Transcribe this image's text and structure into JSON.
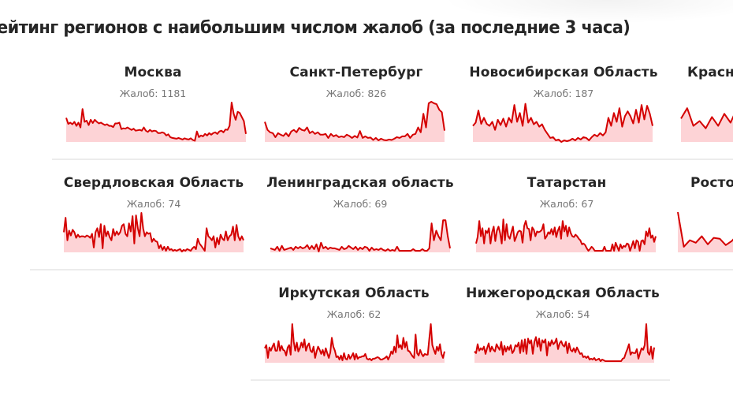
{
  "header": {
    "title": "ейтинг регионов с наибольшим числом жалоб (за последние 3 часа)"
  },
  "colors": {
    "line": "#d40000",
    "fill": "#fdd3d6",
    "title": "#262626",
    "count": "#777777",
    "divider": "#ececec"
  },
  "count_prefix": "Жалоб:",
  "cards": [
    {
      "name": "Москва",
      "count_label": "Жалоб: 1181",
      "count": 1181
    },
    {
      "name": "Санкт-Петербург",
      "count_label": "Жалоб: 826",
      "count": 826
    },
    {
      "name": "Новосибирская Область",
      "count_label": "Жалоб: 187",
      "count": 187
    },
    {
      "name": "Красн",
      "count_label": "",
      "count": null
    },
    {
      "name": "Свердловская Область",
      "count_label": "Жалоб: 74",
      "count": 74
    },
    {
      "name": "Ленинградская область",
      "count_label": "Жалоб: 69",
      "count": 69
    },
    {
      "name": "Татарстан",
      "count_label": "Жалоб: 67",
      "count": 67
    },
    {
      "name": "Росто",
      "count_label": "",
      "count": null
    },
    {
      "name": "Иркутская Область",
      "count_label": "Жалоб: 62",
      "count": 62
    },
    {
      "name": "Нижегородская Область",
      "count_label": "Жалоб: 54",
      "count": 54
    }
  ],
  "chart_data": {
    "type": "area",
    "title": "ейтинг регионов с наибольшим числом жалоб (за последние 3 часа)",
    "xlabel": "",
    "ylabel": "",
    "grid": false,
    "legend": "none",
    "note": "Sparkline values are relative heights (0-100) read from pixels; no axes shown.",
    "series": [
      {
        "name": "Москва",
        "total": 1181,
        "values": [
          60,
          45,
          48,
          44,
          50,
          40,
          48,
          36,
          82,
          50,
          53,
          42,
          55,
          47,
          55,
          50,
          46,
          48,
          45,
          42,
          44,
          40,
          40,
          37,
          46,
          46,
          48,
          32,
          34,
          33,
          36,
          33,
          30,
          33,
          28,
          29,
          30,
          28,
          36,
          28,
          25,
          30,
          26,
          28,
          27,
          22,
          22,
          24,
          22,
          16,
          19,
          12,
          10,
          9,
          8,
          10,
          8,
          6,
          9,
          7,
          6,
          9,
          5,
          3,
          26,
          12,
          16,
          14,
          20,
          16,
          22,
          18,
          22,
          24,
          20,
          26,
          28,
          24,
          31,
          30,
          40,
          98,
          70,
          55,
          75,
          72,
          62,
          52,
          20
        ]
      },
      {
        "name": "Санкт-Петербург",
        "total": 826,
        "values": [
          50,
          30,
          24,
          22,
          12,
          22,
          18,
          15,
          22,
          14,
          26,
          30,
          24,
          35,
          30,
          28,
          36,
          22,
          26,
          20,
          24,
          18,
          18,
          20,
          10,
          20,
          14,
          17,
          12,
          14,
          12,
          18,
          15,
          10,
          15,
          11,
          27,
          10,
          14,
          10,
          11,
          5,
          10,
          4,
          8,
          5,
          4,
          6,
          5,
          8,
          12,
          10,
          14,
          14,
          20,
          10,
          18,
          20,
          36,
          24,
          70,
          36,
          96,
          100,
          96,
          94,
          80,
          74,
          28
        ]
      },
      {
        "name": "Новосибирская Область",
        "total": 187,
        "values": [
          40,
          48,
          78,
          45,
          60,
          45,
          40,
          50,
          30,
          55,
          42,
          58,
          38,
          60,
          48,
          92,
          50,
          72,
          40,
          95,
          48,
          60,
          44,
          50,
          38,
          44,
          30,
          20,
          10,
          12,
          4,
          6,
          0,
          4,
          2,
          4,
          8,
          4,
          10,
          6,
          12,
          10,
          4,
          12,
          18,
          14,
          22,
          16,
          24,
          60,
          40,
          72,
          50,
          84,
          38,
          64,
          76,
          64,
          46,
          80,
          48,
          92,
          56,
          90,
          70,
          40
        ]
      },
      {
        "name": "Красн",
        "total": null,
        "values": [
          58,
          84,
          40,
          52,
          34,
          62,
          40,
          70,
          48,
          82,
          44,
          56,
          30,
          80,
          48,
          22,
          56,
          42,
          52,
          44,
          50,
          44,
          46,
          30,
          36,
          32,
          38,
          36,
          46,
          34
        ]
      },
      {
        "name": "Свердловская Область",
        "total": 74,
        "values": [
          50,
          86,
          30,
          54,
          42,
          56,
          50,
          36,
          44,
          38,
          40,
          40,
          38,
          42,
          40,
          36,
          46,
          12,
          50,
          60,
          38,
          70,
          10,
          66,
          40,
          52,
          38,
          30,
          58,
          42,
          52,
          44,
          50,
          66,
          70,
          46,
          40,
          72,
          52,
          90,
          22,
          92,
          60,
          40,
          98,
          60,
          40,
          50,
          46,
          48,
          26,
          34,
          28,
          26,
          10,
          18,
          6,
          14,
          4,
          14,
          6,
          8,
          4,
          6,
          4,
          6,
          8,
          2,
          6,
          4,
          8,
          6,
          4,
          10,
          14,
          8,
          34,
          22,
          16,
          10,
          4,
          60,
          40,
          36,
          30,
          40,
          12,
          36,
          20,
          44,
          34,
          30,
          52,
          30,
          40,
          44,
          64,
          30,
          68,
          40,
          30,
          40,
          30
        ]
      },
      {
        "name": "Ленинградская область",
        "total": 69,
        "values": [
          10,
          8,
          6,
          14,
          4,
          16,
          6,
          8,
          10,
          12,
          6,
          14,
          10,
          14,
          10,
          12,
          18,
          8,
          16,
          8,
          20,
          2,
          24,
          10,
          14,
          8,
          12,
          10,
          10,
          8,
          6,
          14,
          8,
          10,
          16,
          12,
          8,
          14,
          6,
          12,
          8,
          14,
          12,
          4,
          12,
          6,
          8,
          6,
          10,
          6,
          4,
          8,
          4,
          6,
          4,
          14,
          4,
          4,
          4,
          4,
          4,
          4,
          8,
          4,
          4,
          4,
          8,
          4,
          4,
          10,
          72,
          30,
          54,
          40,
          30,
          80,
          80,
          40,
          10
        ]
      },
      {
        "name": "Татарстан",
        "total": 67,
        "values": [
          22,
          38,
          78,
          40,
          60,
          22,
          54,
          48,
          60,
          22,
          50,
          64,
          28,
          54,
          64,
          48,
          22,
          82,
          30,
          70,
          40,
          34,
          50,
          64,
          28,
          38,
          50,
          54,
          52,
          24,
          66,
          78,
          60,
          58,
          30,
          62,
          56,
          40,
          52,
          50,
          52,
          56,
          70,
          34,
          40,
          50,
          46,
          58,
          44,
          62,
          38,
          54,
          64,
          34,
          78,
          52,
          66,
          40,
          62,
          48,
          40,
          38,
          44,
          40,
          34,
          30,
          20,
          22,
          18,
          10,
          4,
          8,
          14,
          10,
          4,
          4,
          4,
          4,
          4,
          4,
          14,
          4,
          4,
          4,
          4,
          20,
          4,
          24,
          14,
          4,
          20,
          10,
          16,
          14,
          22,
          20,
          4,
          16,
          28,
          10,
          30,
          26,
          4,
          28,
          30,
          20,
          52,
          40,
          60,
          36,
          42,
          26,
          40
        ]
      },
      {
        "name": "Росто",
        "total": null,
        "values": [
          100,
          14,
          30,
          24,
          40,
          20,
          36,
          34,
          18,
          28,
          44,
          30,
          20,
          46,
          32,
          24,
          40,
          50,
          48,
          36,
          20,
          34,
          46,
          28,
          20,
          36,
          30,
          32,
          26,
          34,
          28
        ]
      },
      {
        "name": "Иркутская Область",
        "total": 62,
        "values": [
          36,
          44,
          12,
          38,
          30,
          40,
          48,
          30,
          30,
          54,
          30,
          42,
          32,
          30,
          18,
          38,
          44,
          20,
          96,
          52,
          30,
          50,
          28,
          36,
          50,
          38,
          58,
          30,
          42,
          48,
          30,
          26,
          40,
          12,
          28,
          40,
          32,
          22,
          32,
          18,
          36,
          24,
          12,
          26,
          62,
          40,
          30,
          14,
          16,
          8,
          18,
          6,
          24,
          10,
          8,
          20,
          10,
          16,
          24,
          8,
          22,
          10,
          14,
          14,
          16,
          16,
          22,
          10,
          8,
          10,
          6,
          10,
          10,
          12,
          14,
          12,
          8,
          8,
          10,
          12,
          16,
          8,
          16,
          28,
          22,
          40,
          26,
          68,
          38,
          44,
          34,
          62,
          38,
          52,
          30,
          28,
          22,
          16,
          12,
          70,
          24,
          18,
          32,
          22,
          16,
          22,
          20,
          20,
          60,
          96,
          44,
          32,
          22,
          40,
          30,
          46,
          22,
          12,
          28
        ]
      },
      {
        "name": "Нижегородская Область",
        "total": 54,
        "values": [
          28,
          24,
          46,
          30,
          36,
          32,
          40,
          22,
          36,
          48,
          28,
          40,
          32,
          28,
          46,
          38,
          32,
          52,
          20,
          42,
          28,
          40,
          32,
          44,
          24,
          30,
          44,
          40,
          50,
          24,
          56,
          28,
          58,
          22,
          60,
          48,
          56,
          22,
          52,
          64,
          40,
          60,
          30,
          56,
          50,
          58,
          18,
          52,
          42,
          56,
          46,
          50,
          60,
          34,
          48,
          54,
          44,
          40,
          52,
          24,
          48,
          32,
          28,
          36,
          26,
          38,
          30,
          22,
          24,
          14,
          16,
          12,
          16,
          8,
          10,
          8,
          12,
          6,
          8,
          10,
          4,
          8,
          6,
          4,
          4,
          4,
          4,
          4,
          4,
          4,
          4,
          4,
          4,
          4,
          10,
          12,
          24,
          34,
          46,
          20,
          26,
          24,
          24,
          34,
          10,
          24,
          36,
          32,
          44,
          96,
          26,
          20,
          40,
          10,
          38
        ]
      }
    ]
  }
}
